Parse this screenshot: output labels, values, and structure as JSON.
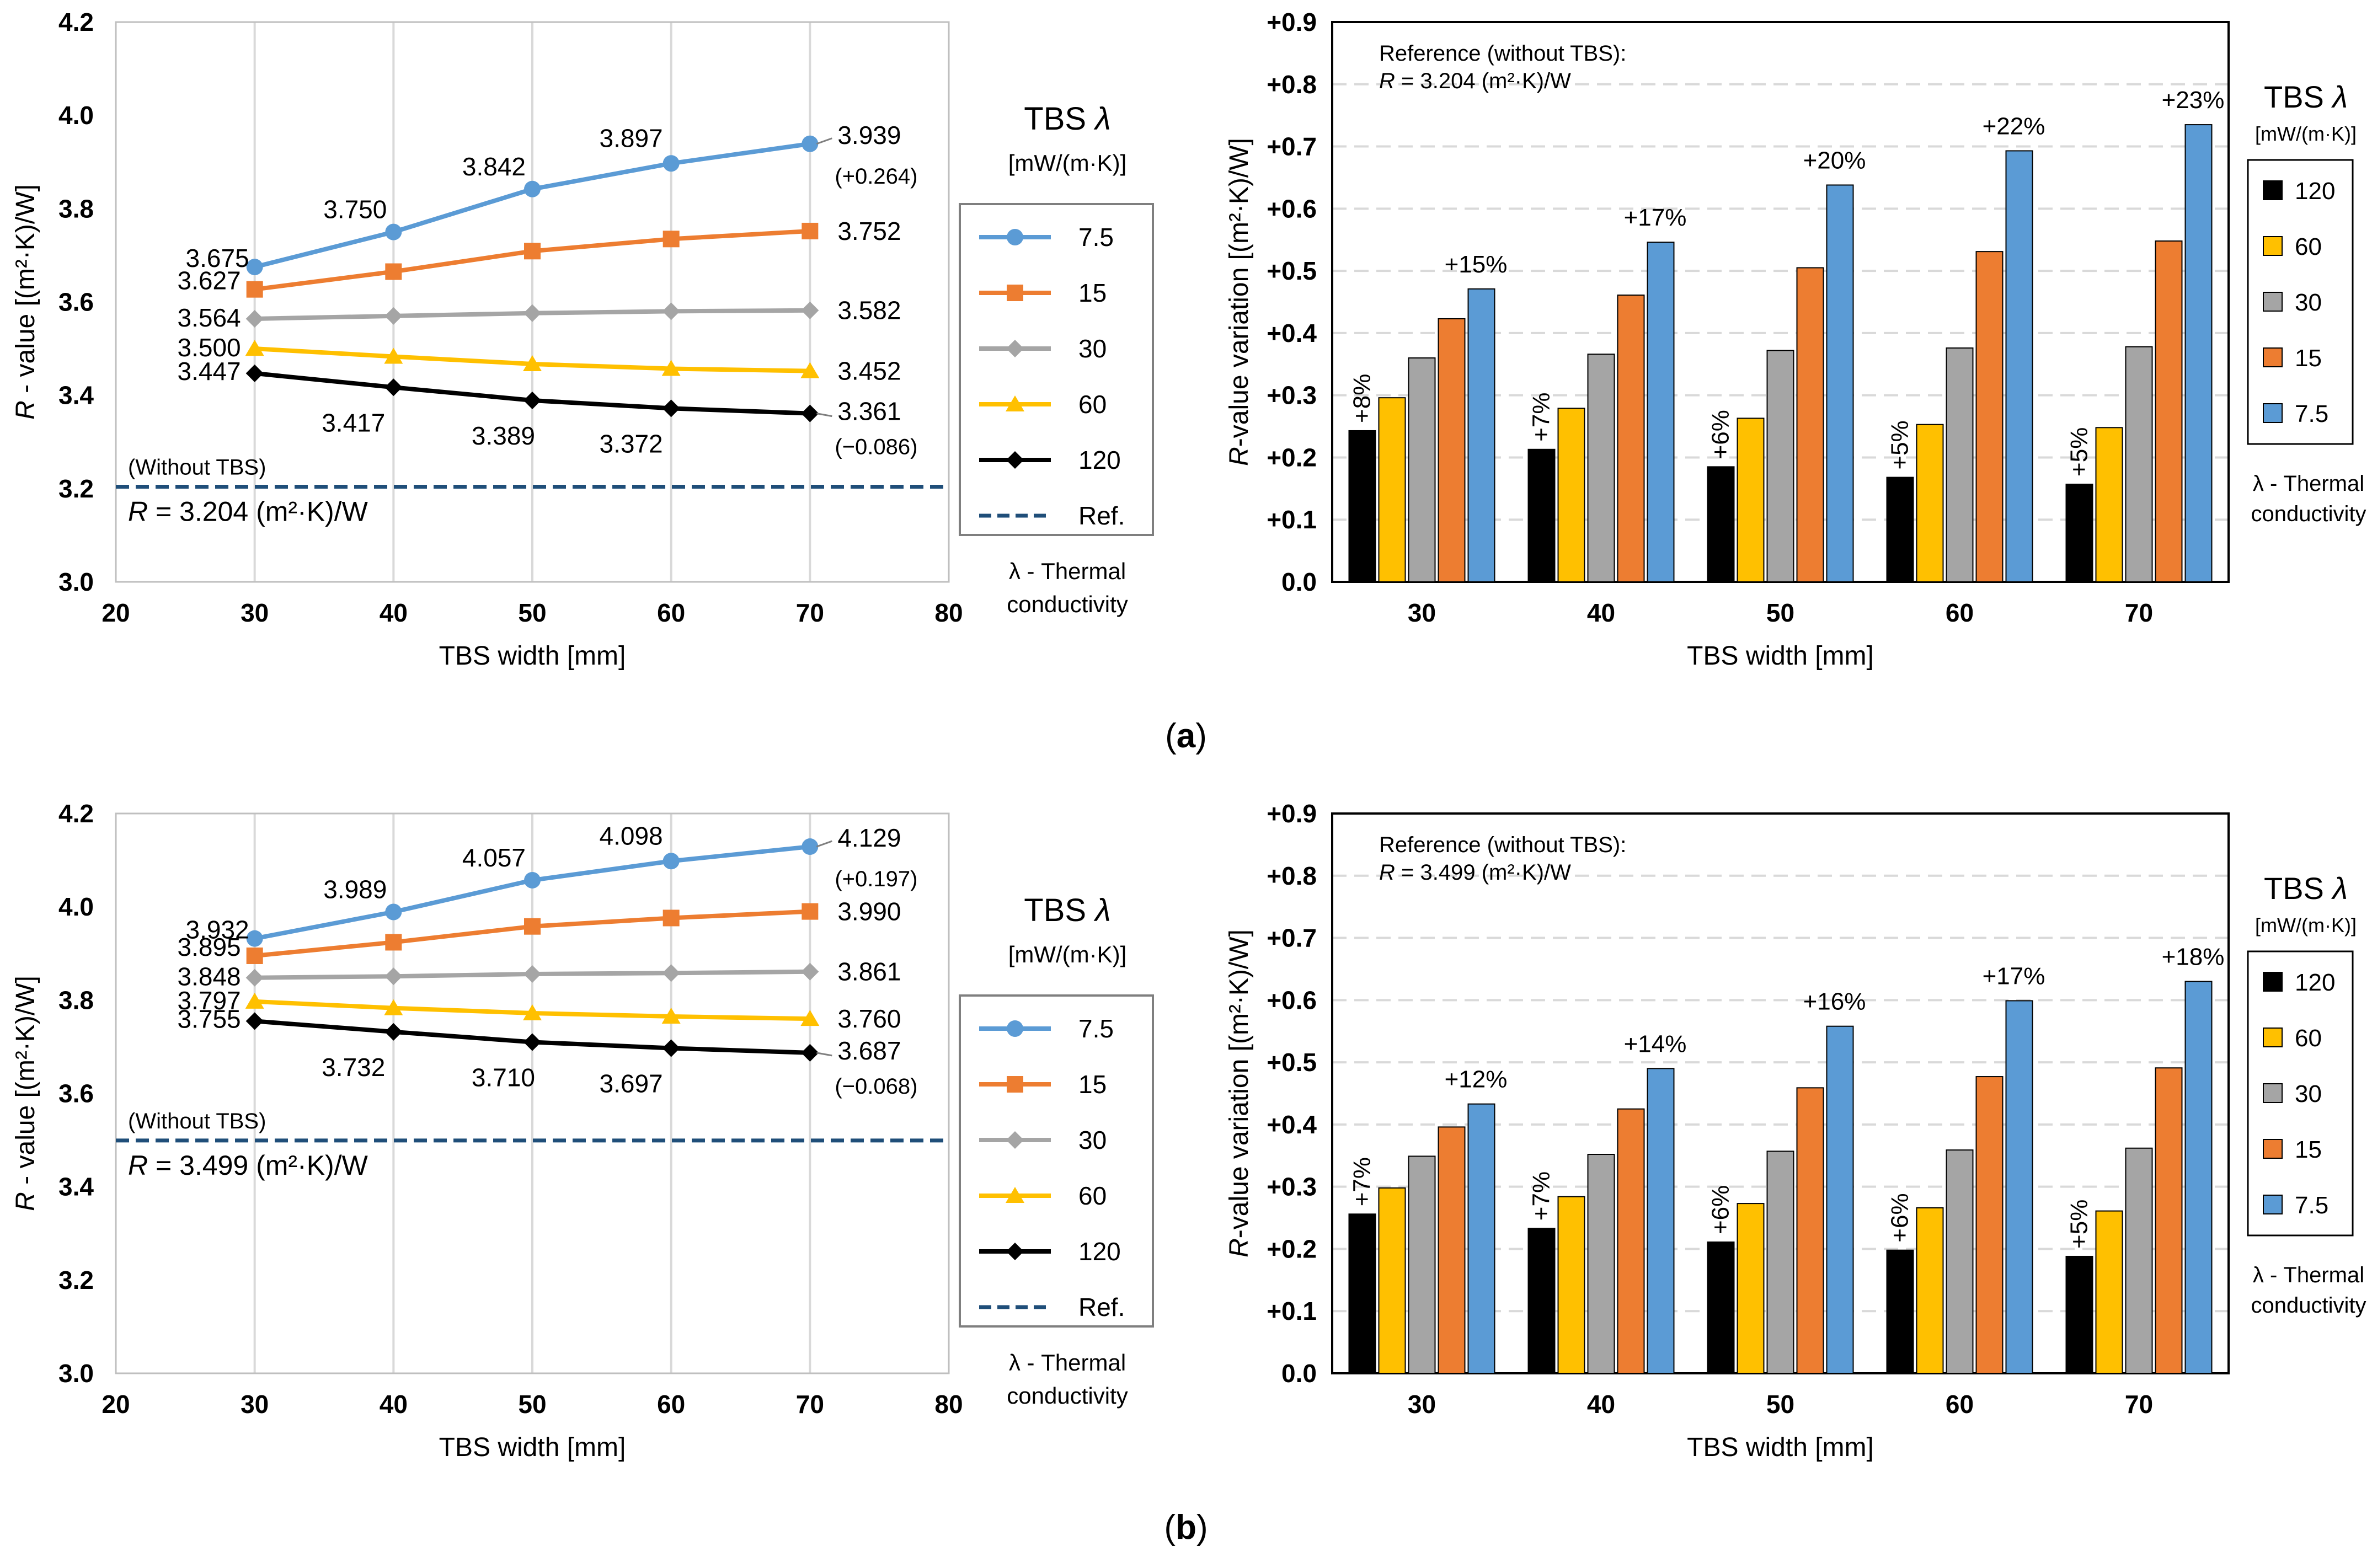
{
  "colors": {
    "s7_5": "#5B9BD5",
    "s15": "#ED7D31",
    "s30": "#A5A5A5",
    "s60": "#FFC000",
    "s120": "#000000",
    "ref": "#1F4E79",
    "grid": "#D9D9D9"
  },
  "panel_labels": [
    "(a)",
    "(b)"
  ],
  "chart_data": [
    {
      "id": "a-line",
      "type": "line",
      "xlabel": "TBS width [mm]",
      "ylabel": "R - value  [(m²·K)/W]",
      "xlim": [
        20,
        80
      ],
      "ylim": [
        3.0,
        4.2
      ],
      "xticks": [
        "20",
        "30",
        "40",
        "50",
        "60",
        "70",
        "80"
      ],
      "yticks": [
        "3.0",
        "3.2",
        "3.4",
        "3.6",
        "3.8",
        "4.0",
        "4.2"
      ],
      "x": [
        30,
        40,
        50,
        60,
        70
      ],
      "series": [
        {
          "name": "7.5",
          "values": [
            3.675,
            3.75,
            3.842,
            3.897,
            3.939
          ],
          "labels": [
            "3.675",
            "3.750",
            "3.842",
            "3.897",
            "3.939"
          ],
          "delta": "(+0.264)"
        },
        {
          "name": "15",
          "values": [
            3.627,
            3.665,
            3.709,
            3.735,
            3.752
          ],
          "labels": [
            "3.627",
            "",
            "",
            "",
            "3.752"
          ],
          "delta": ""
        },
        {
          "name": "30",
          "values": [
            3.564,
            3.57,
            3.576,
            3.58,
            3.582
          ],
          "labels": [
            "3.564",
            "",
            "",
            "",
            "3.582"
          ],
          "delta": ""
        },
        {
          "name": "60",
          "values": [
            3.5,
            3.483,
            3.467,
            3.457,
            3.452
          ],
          "labels": [
            "3.500",
            "",
            "",
            "",
            "3.452"
          ],
          "delta": ""
        },
        {
          "name": "120",
          "values": [
            3.447,
            3.417,
            3.389,
            3.372,
            3.361
          ],
          "labels": [
            "3.447",
            "3.417",
            "3.389",
            "3.372",
            "3.361"
          ],
          "delta": "(−0.086)"
        }
      ],
      "reference": {
        "name": "Ref.",
        "value": 3.204,
        "label_top": "(Without TBS)",
        "label_main": "R = 3.204 (m²·K)/W"
      },
      "legend": {
        "title": "TBS λ",
        "unit": "[mW/(m·K)]",
        "note_line1": "λ - Thermal",
        "note_line2": "conductivity"
      }
    },
    {
      "id": "a-bar",
      "type": "bar",
      "xlabel": "TBS width [mm]",
      "ylabel": "R-value variation [(m²·K)/W]",
      "ylim": [
        0,
        0.9
      ],
      "yticks": [
        "0.0",
        "+0.1",
        "+0.2",
        "+0.3",
        "+0.4",
        "+0.5",
        "+0.6",
        "+0.7",
        "+0.8",
        "+0.9"
      ],
      "categories": [
        "30",
        "40",
        "50",
        "60",
        "70"
      ],
      "series": [
        {
          "name": "120",
          "values": [
            0.243,
            0.213,
            0.185,
            0.168,
            0.157
          ]
        },
        {
          "name": "60",
          "values": [
            0.296,
            0.279,
            0.263,
            0.253,
            0.248
          ]
        },
        {
          "name": "30",
          "values": [
            0.36,
            0.366,
            0.372,
            0.376,
            0.378
          ]
        },
        {
          "name": "15",
          "values": [
            0.423,
            0.461,
            0.505,
            0.531,
            0.548
          ]
        },
        {
          "name": "7.5",
          "values": [
            0.471,
            0.546,
            0.638,
            0.693,
            0.735
          ]
        }
      ],
      "pct_low": [
        "+8%",
        "+7%",
        "+6%",
        "+5%",
        "+5%"
      ],
      "pct_high": [
        "+15%",
        "+17%",
        "+20%",
        "+22%",
        "+23%"
      ],
      "reference_line1": "Reference (without TBS):",
      "reference_line2": "R = 3.204 (m²·K)/W",
      "legend": {
        "title": "TBS λ",
        "unit": "[mW/(m·K)]",
        "note_line1": "λ - Thermal",
        "note_line2": "conductivity"
      }
    },
    {
      "id": "b-line",
      "type": "line",
      "xlabel": "TBS width [mm]",
      "ylabel": "R - value  [(m²·K)/W]",
      "xlim": [
        20,
        80
      ],
      "ylim": [
        3.0,
        4.2
      ],
      "xticks": [
        "20",
        "30",
        "40",
        "50",
        "60",
        "70",
        "80"
      ],
      "yticks": [
        "3.0",
        "3.2",
        "3.4",
        "3.6",
        "3.8",
        "4.0",
        "4.2"
      ],
      "x": [
        30,
        40,
        50,
        60,
        70
      ],
      "series": [
        {
          "name": "7.5",
          "values": [
            3.932,
            3.989,
            4.057,
            4.098,
            4.129
          ],
          "labels": [
            "3.932",
            "3.989",
            "4.057",
            "4.098",
            "4.129"
          ],
          "delta": "(+0.197)"
        },
        {
          "name": "15",
          "values": [
            3.895,
            3.924,
            3.958,
            3.976,
            3.99
          ],
          "labels": [
            "3.895",
            "",
            "",
            "",
            "3.990"
          ],
          "delta": ""
        },
        {
          "name": "30",
          "values": [
            3.848,
            3.851,
            3.856,
            3.858,
            3.861
          ],
          "labels": [
            "3.848",
            "",
            "",
            "",
            "3.861"
          ],
          "delta": ""
        },
        {
          "name": "60",
          "values": [
            3.797,
            3.783,
            3.772,
            3.765,
            3.76
          ],
          "labels": [
            "3.797",
            "",
            "",
            "",
            "3.760"
          ],
          "delta": ""
        },
        {
          "name": "120",
          "values": [
            3.755,
            3.732,
            3.71,
            3.697,
            3.687
          ],
          "labels": [
            "3.755",
            "3.732",
            "3.710",
            "3.697",
            "3.687"
          ],
          "delta": "(−0.068)"
        }
      ],
      "reference": {
        "name": "Ref.",
        "value": 3.499,
        "label_top": "(Without TBS)",
        "label_main": "R = 3.499 (m²·K)/W"
      },
      "legend": {
        "title": "TBS λ",
        "unit": "[mW/(m·K)]",
        "note_line1": "λ - Thermal",
        "note_line2": "conductivity"
      }
    },
    {
      "id": "b-bar",
      "type": "bar",
      "xlabel": "TBS width [mm]",
      "ylabel": "R-value variation [(m²·K)/W]",
      "ylim": [
        0,
        0.9
      ],
      "yticks": [
        "0.0",
        "+0.1",
        "+0.2",
        "+0.3",
        "+0.4",
        "+0.5",
        "+0.6",
        "+0.7",
        "+0.8",
        "+0.9"
      ],
      "categories": [
        "30",
        "40",
        "50",
        "60",
        "70"
      ],
      "series": [
        {
          "name": "120",
          "values": [
            0.256,
            0.233,
            0.211,
            0.198,
            0.188
          ]
        },
        {
          "name": "60",
          "values": [
            0.298,
            0.284,
            0.273,
            0.266,
            0.261
          ]
        },
        {
          "name": "30",
          "values": [
            0.349,
            0.352,
            0.357,
            0.359,
            0.362
          ]
        },
        {
          "name": "15",
          "values": [
            0.396,
            0.425,
            0.459,
            0.477,
            0.491
          ]
        },
        {
          "name": "7.5",
          "values": [
            0.433,
            0.49,
            0.558,
            0.599,
            0.63
          ]
        }
      ],
      "pct_low": [
        "+7%",
        "+7%",
        "+6%",
        "+6%",
        "+5%"
      ],
      "pct_high": [
        "+12%",
        "+14%",
        "+16%",
        "+17%",
        "+18%"
      ],
      "reference_line1": "Reference (without TBS):",
      "reference_line2": "R = 3.499 (m²·K)/W",
      "legend": {
        "title": "TBS λ",
        "unit": "[mW/(m·K)]",
        "note_line1": "λ - Thermal",
        "note_line2": "conductivity"
      }
    }
  ]
}
